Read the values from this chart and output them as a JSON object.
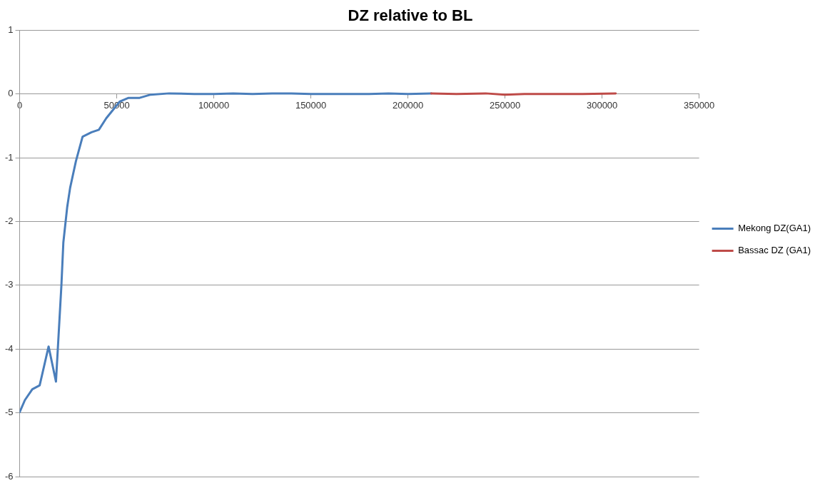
{
  "chart_data": {
    "type": "line",
    "title": "DZ relative to BL",
    "xlim": [
      0,
      350000
    ],
    "xticks": [
      0,
      50000,
      100000,
      150000,
      200000,
      250000,
      300000,
      350000
    ],
    "ylim": [
      -6,
      1
    ],
    "yticks": [
      -6,
      -5,
      -4,
      -3,
      -2,
      -1,
      0,
      1
    ],
    "grid": "y",
    "legend": "right",
    "marker": "none",
    "line_style": "solid",
    "series": [
      {
        "name": "Mekong DZ(GA1)",
        "color": "#4a7ebb",
        "x": [
          0,
          2700,
          6500,
          10300,
          14900,
          18700,
          21500,
          22500,
          24500,
          26000,
          29000,
          32400,
          37000,
          40800,
          44600,
          51500,
          56100,
          61800,
          67500,
          77000,
          90000,
          100000,
          110000,
          120000,
          130000,
          140000,
          150000,
          160000,
          170000,
          180000,
          190000,
          200000,
          212000
        ],
        "values": [
          -4.99,
          -4.8,
          -4.63,
          -4.57,
          -3.96,
          -4.51,
          -3.0,
          -2.33,
          -1.77,
          -1.47,
          -1.05,
          -0.67,
          -0.6,
          -0.56,
          -0.38,
          -0.12,
          -0.06,
          -0.06,
          -0.01,
          0.01,
          0,
          0,
          0.01,
          0,
          0.01,
          0.01,
          0,
          0,
          0,
          0,
          0.01,
          0,
          0.01
        ]
      },
      {
        "name": "Bassac DZ (GA1)",
        "color": "#be4b48",
        "x": [
          212000,
          225000,
          240000,
          250000,
          260000,
          275000,
          290000,
          307000
        ],
        "values": [
          0.01,
          0,
          0.01,
          -0.01,
          0,
          0,
          0,
          0.01
        ]
      }
    ]
  }
}
